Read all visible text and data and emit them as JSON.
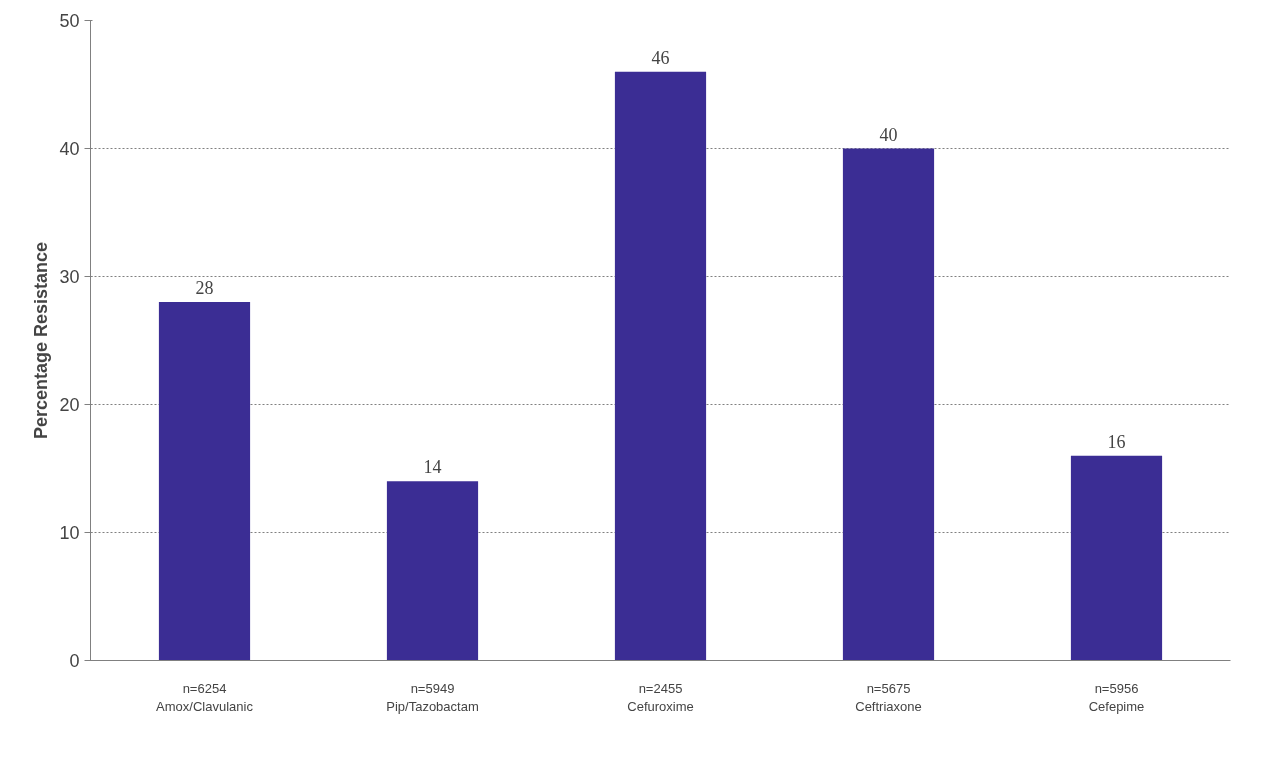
{
  "chart_data": {
    "type": "bar",
    "ylabel": "Percentage Resistance",
    "categories": [
      "n=6254\nAmox/Clavulanic",
      "n=5949\nPip/Tazobactam",
      "n=2455\nCefuroxime",
      "n=5675\nCeftriaxone",
      "n=5956\nCefepime"
    ],
    "values": [
      28,
      14,
      46,
      40,
      16
    ],
    "color": "#3b2d94",
    "ylim": [
      0,
      50
    ],
    "yticks": [
      0,
      10,
      20,
      30,
      40,
      50
    ],
    "grid": "y",
    "data_labels": true
  }
}
